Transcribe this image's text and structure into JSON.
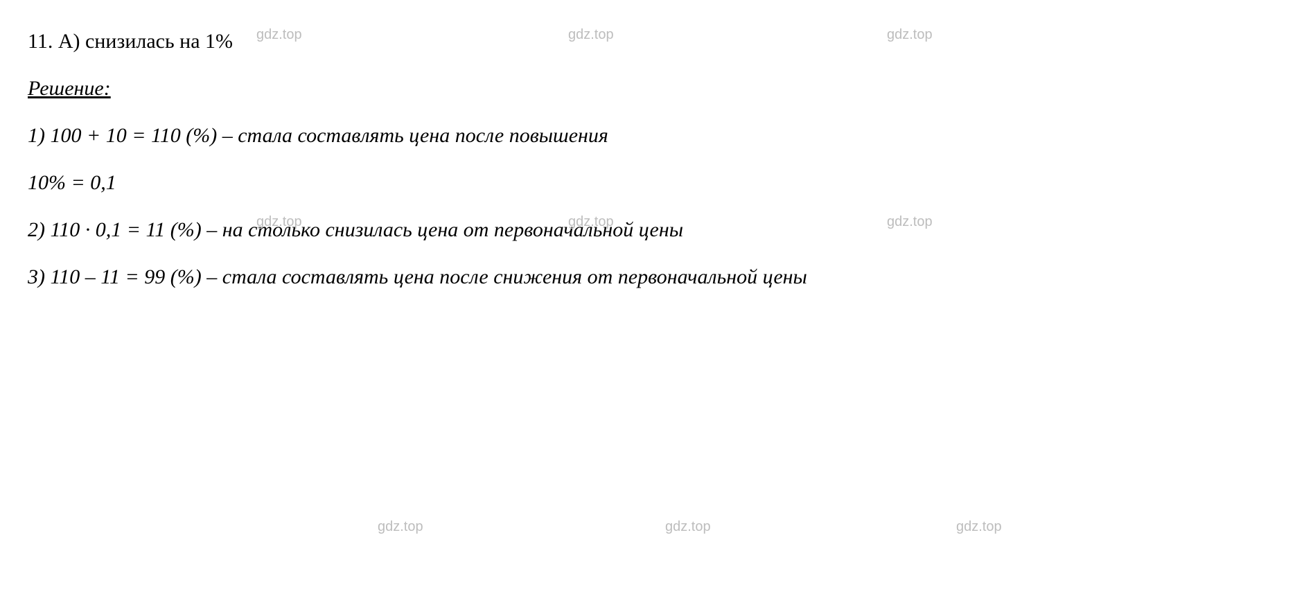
{
  "line1": "11. А) снизилась на 1%",
  "solution_label": "Решение:",
  "step1": "1) 100 + 10 = 110 (%) – стала составлять цена после повышения",
  "percent_line": "10% = 0,1",
  "step2": "2) 110 · 0,1 = 11 (%) – на столько снизилась цена от первоначальной цены",
  "step3": "3) 110 – 11 = 99 (%) – стала составлять цена после снижения от первоначальной цены",
  "watermark": "gdz.top",
  "colors": {
    "text": "#000000",
    "background": "#ffffff",
    "watermark": "#bdbdbd"
  },
  "typography": {
    "font_family": "Times New Roman",
    "font_size_pt": 22,
    "line_height": 2.0,
    "body_style": "italic",
    "first_line_style": "normal",
    "heading_underline": true
  }
}
